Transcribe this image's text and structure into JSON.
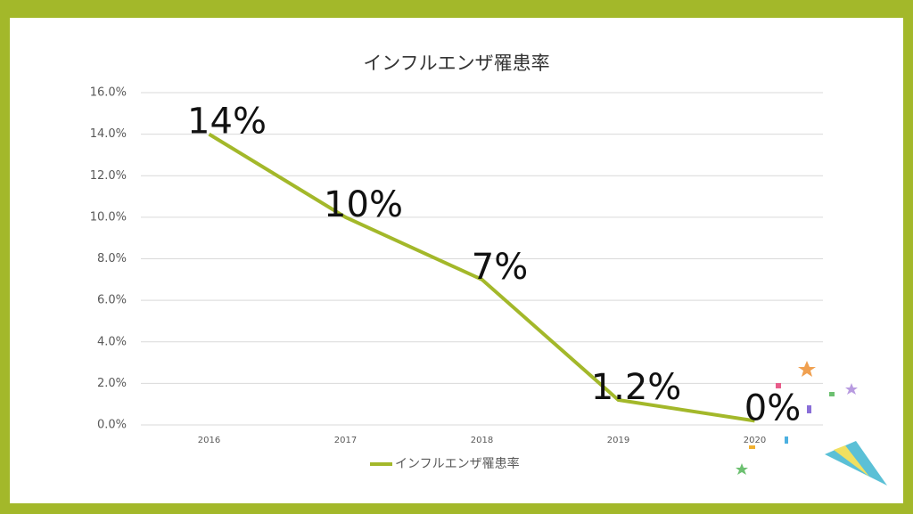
{
  "chart_data": {
    "type": "line",
    "title": "インフルエンザ罹患率",
    "categories": [
      "2016",
      "2017",
      "2018",
      "2019",
      "2020"
    ],
    "series": [
      {
        "name": "インフルエンザ罹患率",
        "color": "#a3b82a",
        "values": [
          14,
          10,
          7,
          1.2,
          0.2
        ],
        "value_labels": [
          "14%",
          "10%",
          "7%",
          "1.2%",
          "0%"
        ]
      }
    ],
    "ylim": [
      0,
      16
    ],
    "yticks": [
      {
        "value": 0,
        "label": "0.0%"
      },
      {
        "value": 2,
        "label": "2.0%"
      },
      {
        "value": 4,
        "label": "4.0%"
      },
      {
        "value": 6,
        "label": "6.0%"
      },
      {
        "value": 8,
        "label": "8.0%"
      },
      {
        "value": 10,
        "label": "10.0%"
      },
      {
        "value": 12,
        "label": "12.0%"
      },
      {
        "value": 14,
        "label": "14.0%"
      },
      {
        "value": 16,
        "label": "16.0%"
      }
    ],
    "grid": true,
    "legend": "bottom"
  }
}
